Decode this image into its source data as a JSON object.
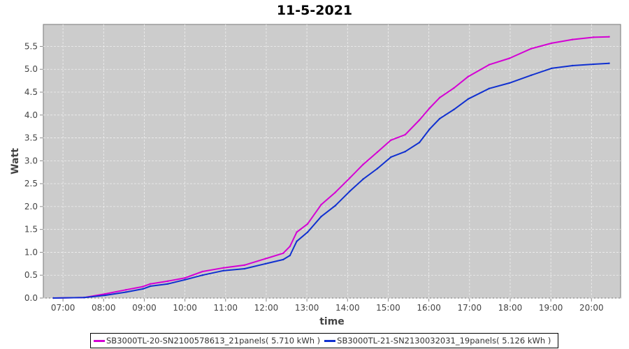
{
  "chart_data": {
    "type": "line",
    "title": "11-5-2021",
    "xlabel": "time",
    "ylabel": "Watt",
    "ylim": [
      0,
      5.98
    ],
    "xlim": [
      "06:31",
      "20:43"
    ],
    "grid": true,
    "legend_position": "bottom",
    "x_ticks": [
      "07:00",
      "08:00",
      "09:00",
      "10:00",
      "11:00",
      "12:00",
      "13:00",
      "14:00",
      "15:00",
      "16:00",
      "17:00",
      "18:00",
      "19:00",
      "20:00"
    ],
    "y_ticks": [
      "0.0",
      "0.5",
      "1.0",
      "1.5",
      "2.0",
      "2.5",
      "3.0",
      "3.5",
      "4.0",
      "4.5",
      "5.0",
      "5.5"
    ],
    "x": [
      "06:46",
      "07:31",
      "08:02",
      "08:33",
      "08:58",
      "09:09",
      "09:35",
      "10:00",
      "10:26",
      "10:57",
      "11:28",
      "11:59",
      "12:25",
      "12:35",
      "12:45",
      "13:01",
      "13:21",
      "13:42",
      "14:03",
      "14:23",
      "14:44",
      "15:04",
      "15:25",
      "15:46",
      "16:01",
      "16:16",
      "16:37",
      "16:58",
      "17:29",
      "17:59",
      "18:31",
      "19:01",
      "19:32",
      "20:03",
      "20:26"
    ],
    "series": [
      {
        "name": "SB3000TL-20-SN2100578613_21panels( 5.710 kWh )",
        "color": "#d400d4",
        "values": [
          0,
          0.01,
          0.09,
          0.18,
          0.25,
          0.31,
          0.37,
          0.44,
          0.58,
          0.66,
          0.72,
          0.86,
          0.98,
          1.13,
          1.44,
          1.62,
          2.04,
          2.31,
          2.62,
          2.92,
          3.19,
          3.45,
          3.57,
          3.89,
          4.15,
          4.38,
          4.59,
          4.84,
          5.1,
          5.24,
          5.45,
          5.57,
          5.65,
          5.7,
          5.71
        ]
      },
      {
        "name": "SB3000TL-21-SN2130032031_19panels( 5.126 kWh )",
        "color": "#1030d0",
        "values": [
          0,
          0.01,
          0.06,
          0.13,
          0.2,
          0.26,
          0.31,
          0.4,
          0.5,
          0.6,
          0.64,
          0.75,
          0.84,
          0.93,
          1.24,
          1.44,
          1.78,
          2.02,
          2.33,
          2.6,
          2.83,
          3.08,
          3.2,
          3.4,
          3.69,
          3.92,
          4.12,
          4.35,
          4.58,
          4.7,
          4.87,
          5.02,
          5.08,
          5.11,
          5.13
        ]
      }
    ]
  }
}
